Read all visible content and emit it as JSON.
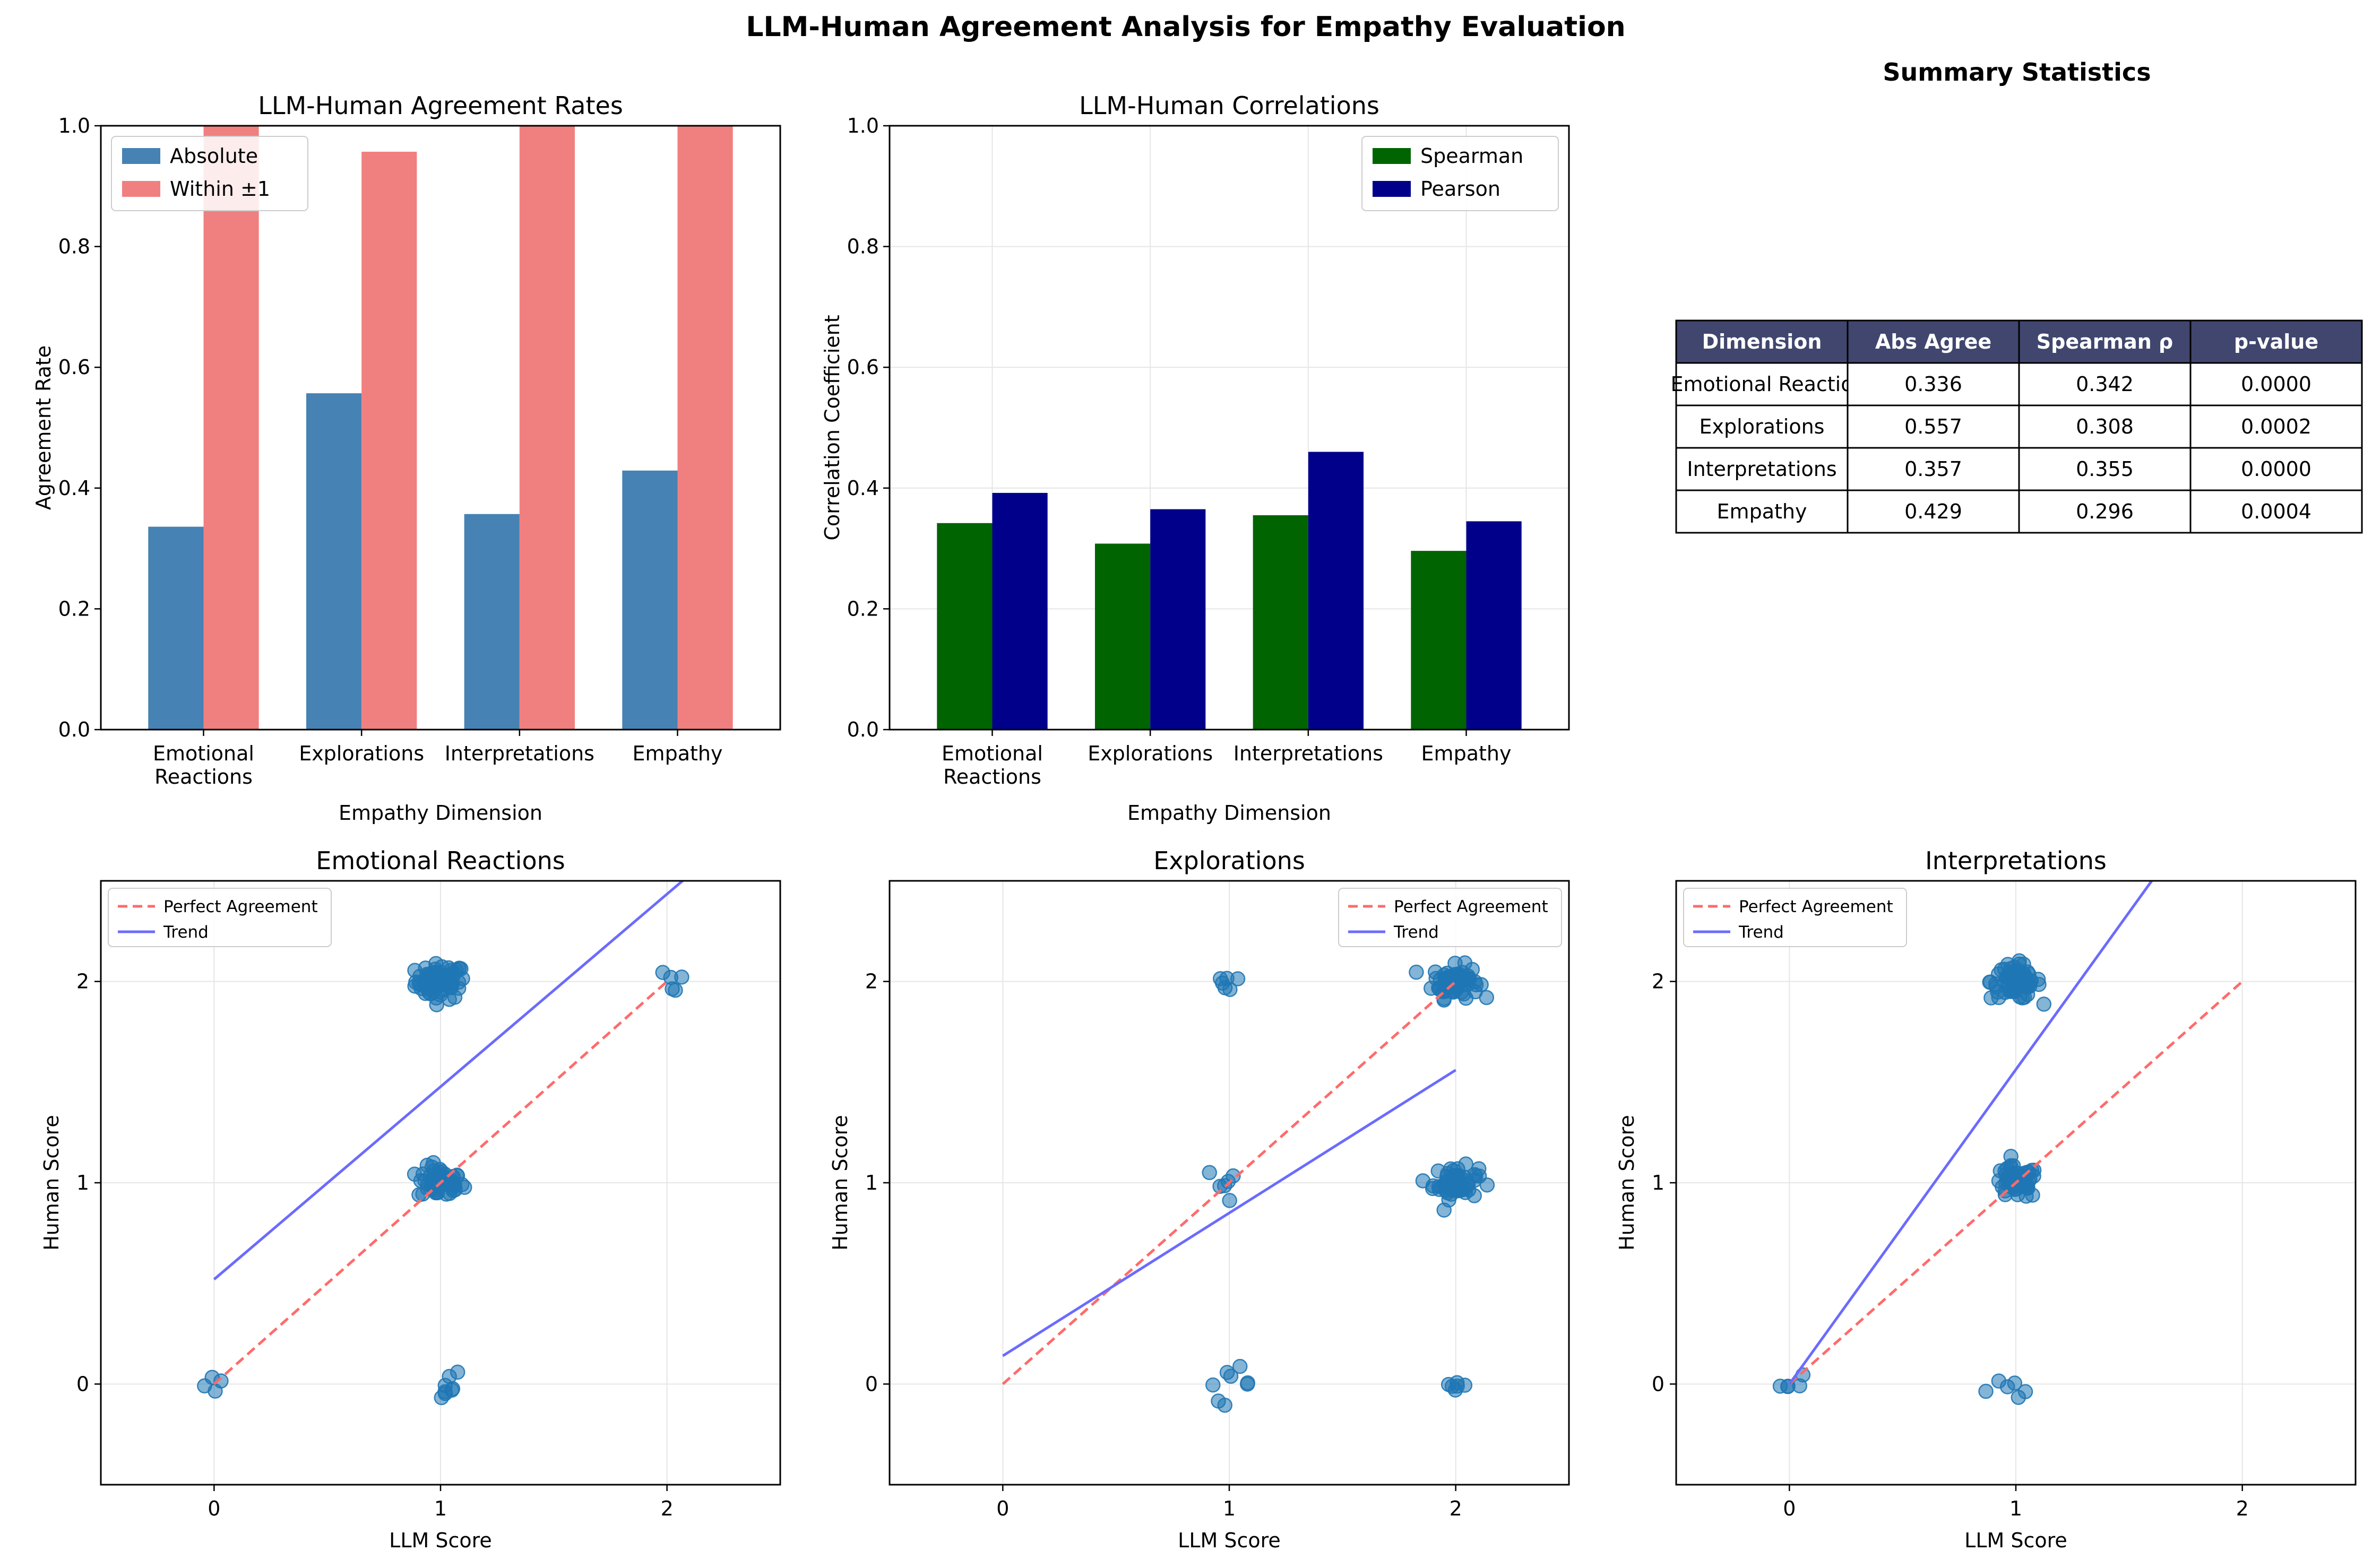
{
  "figure": {
    "title": "LLM-Human Agreement Analysis for Empathy Evaluation",
    "colors": {
      "absolute": "#4682b4",
      "within1": "#f08080",
      "spearman": "#006400",
      "pearson": "#00008b",
      "points": "#1f77b4",
      "perfect": "#ff6b6b",
      "trend": "#6b6bff",
      "table_header_bg": "#40466e",
      "grid": "#e6e6e6"
    }
  },
  "chart_data": [
    {
      "id": "agreement",
      "type": "bar",
      "title": "LLM-Human Agreement Rates",
      "xlabel": "Empathy Dimension",
      "ylabel": "Agreement Rate",
      "ylim": [
        0,
        1
      ],
      "yticks": [
        "0.0",
        "0.2",
        "0.4",
        "0.6",
        "0.8",
        "1.0"
      ],
      "grid": false,
      "legend": "top-left",
      "categories": [
        "Emotional\nReactions",
        "Explorations",
        "Interpretations",
        "Empathy"
      ],
      "series": [
        {
          "name": "Absolute",
          "color": "#4682b4",
          "values": [
            0.336,
            0.557,
            0.357,
            0.429
          ]
        },
        {
          "name": "Within ±1",
          "color": "#f08080",
          "values": [
            1.0,
            0.957,
            1.0,
            1.0
          ]
        }
      ]
    },
    {
      "id": "correlations",
      "type": "bar",
      "title": "LLM-Human Correlations",
      "xlabel": "Empathy Dimension",
      "ylabel": "Correlation Coefficient",
      "ylim": [
        0,
        1
      ],
      "yticks": [
        "0.0",
        "0.2",
        "0.4",
        "0.6",
        "0.8",
        "1.0"
      ],
      "grid": true,
      "legend": "top-right",
      "categories": [
        "Emotional\nReactions",
        "Explorations",
        "Interpretations",
        "Empathy"
      ],
      "series": [
        {
          "name": "Spearman",
          "color": "#006400",
          "values": [
            0.342,
            0.308,
            0.355,
            0.296
          ]
        },
        {
          "name": "Pearson",
          "color": "#00008b",
          "values": [
            0.392,
            0.365,
            0.46,
            0.345
          ]
        }
      ]
    },
    {
      "id": "table",
      "type": "table",
      "title": "Summary Statistics",
      "columns": [
        "Dimension",
        "Abs Agree",
        "Spearman ρ",
        "p-value"
      ],
      "rows": [
        [
          "Emotional Reactio",
          "0.336",
          "0.342",
          "0.0000"
        ],
        [
          "Explorations",
          "0.557",
          "0.308",
          "0.0002"
        ],
        [
          "Interpretations",
          "0.357",
          "0.355",
          "0.0000"
        ],
        [
          "Empathy",
          "0.429",
          "0.296",
          "0.0004"
        ]
      ]
    },
    {
      "id": "scatter_er",
      "type": "scatter",
      "title": "Emotional Reactions",
      "xlabel": "LLM Score",
      "ylabel": "Human Score",
      "xlim": [
        -0.5,
        2.5
      ],
      "ylim": [
        -0.5,
        2.5
      ],
      "xticks": [
        0,
        1,
        2
      ],
      "yticks": [
        0,
        1,
        2
      ],
      "grid": true,
      "legend": "top-left",
      "perfect_line": {
        "name": "Perfect Agreement",
        "x": [
          0,
          2
        ],
        "y": [
          0,
          2
        ]
      },
      "trend_line": {
        "name": "Trend",
        "x": [
          0,
          2.1
        ],
        "y": [
          0.52,
          2.53
        ]
      },
      "clusters": [
        {
          "x": 1,
          "y": 2,
          "n": 70,
          "spread": 0.055
        },
        {
          "x": 1,
          "y": 1,
          "n": 55,
          "spread": 0.05
        },
        {
          "x": 1,
          "y": 0,
          "n": 8,
          "spread": 0.05
        },
        {
          "x": 2,
          "y": 2,
          "n": 5,
          "spread": 0.05
        },
        {
          "x": 0,
          "y": 0,
          "n": 4,
          "spread": 0.04
        }
      ]
    },
    {
      "id": "scatter_ex",
      "type": "scatter",
      "title": "Explorations",
      "xlabel": "LLM Score",
      "ylabel": "Human Score",
      "xlim": [
        -0.5,
        2.5
      ],
      "ylim": [
        -0.5,
        2.5
      ],
      "xticks": [
        0,
        1,
        2
      ],
      "yticks": [
        0,
        1,
        2
      ],
      "grid": true,
      "legend": "top-right",
      "perfect_line": {
        "name": "Perfect Agreement",
        "x": [
          0,
          2
        ],
        "y": [
          0,
          2
        ]
      },
      "trend_line": {
        "name": "Trend",
        "x": [
          0,
          2
        ],
        "y": [
          0.14,
          1.56
        ]
      },
      "clusters": [
        {
          "x": 2,
          "y": 2,
          "n": 70,
          "spread": 0.05
        },
        {
          "x": 2,
          "y": 1,
          "n": 55,
          "spread": 0.05
        },
        {
          "x": 2,
          "y": 0,
          "n": 6,
          "spread": 0.03
        },
        {
          "x": 1,
          "y": 2,
          "n": 6,
          "spread": 0.04
        },
        {
          "x": 1,
          "y": 1,
          "n": 6,
          "spread": 0.05
        },
        {
          "x": 1,
          "y": 0,
          "n": 8,
          "spread": 0.05
        }
      ]
    },
    {
      "id": "scatter_in",
      "type": "scatter",
      "title": "Interpretations",
      "xlabel": "LLM Score",
      "ylabel": "Human Score",
      "xlim": [
        -0.5,
        2.5
      ],
      "ylim": [
        -0.5,
        2.5
      ],
      "xticks": [
        0,
        1,
        2
      ],
      "yticks": [
        0,
        1,
        2
      ],
      "grid": true,
      "legend": "top-left",
      "perfect_line": {
        "name": "Perfect Agreement",
        "x": [
          0,
          2
        ],
        "y": [
          0,
          2
        ]
      },
      "trend_line": {
        "name": "Trend",
        "x": [
          0,
          1.6
        ],
        "y": [
          0,
          2.5
        ]
      },
      "clusters": [
        {
          "x": 1,
          "y": 2,
          "n": 70,
          "spread": 0.055
        },
        {
          "x": 1,
          "y": 1,
          "n": 55,
          "spread": 0.05
        },
        {
          "x": 1,
          "y": 0,
          "n": 6,
          "spread": 0.05
        },
        {
          "x": 0,
          "y": 0,
          "n": 5,
          "spread": 0.04
        }
      ]
    }
  ]
}
